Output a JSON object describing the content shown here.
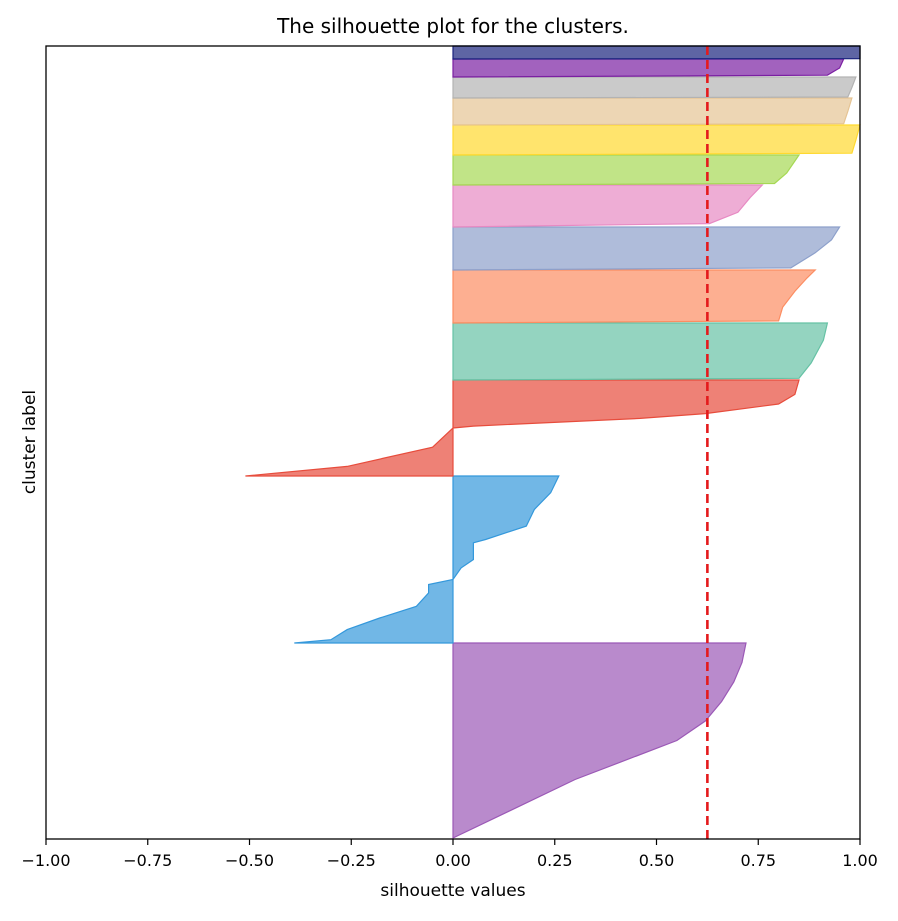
{
  "chart_data": {
    "type": "area",
    "title": "The silhouette plot for the clusters.",
    "xlabel": "silhouette values",
    "ylabel": "cluster label",
    "xlim": [
      -1.0,
      1.0
    ],
    "xticks": [
      "−1.00",
      "−0.75",
      "−0.50",
      "−0.25",
      "0.00",
      "0.25",
      "0.50",
      "0.75",
      "1.00"
    ],
    "xtick_values": [
      -1.0,
      -0.75,
      -0.5,
      -0.25,
      0.0,
      0.25,
      0.5,
      0.75,
      1.0
    ],
    "yticks_visible": false,
    "grid": false,
    "legend": "none",
    "average_silhouette": 0.625,
    "average_line_color": "#e41a1c",
    "clusters": [
      {
        "color": "#9b59b6",
        "profile": [
          [
            0.0,
            0.0
          ],
          [
            0.3,
            0.3
          ],
          [
            0.5,
            0.55
          ],
          [
            0.6,
            0.62
          ],
          [
            0.7,
            0.66
          ],
          [
            0.8,
            0.69
          ],
          [
            0.9,
            0.71
          ],
          [
            1.0,
            0.72
          ]
        ]
      },
      {
        "color": "#3498db",
        "profile": [
          [
            0.0,
            -0.39
          ],
          [
            0.02,
            -0.3
          ],
          [
            0.08,
            -0.26
          ],
          [
            0.15,
            -0.18
          ],
          [
            0.22,
            -0.09
          ],
          [
            0.3,
            -0.06
          ],
          [
            0.35,
            -0.06
          ],
          [
            0.38,
            0.0
          ],
          [
            0.45,
            0.02
          ],
          [
            0.5,
            0.05
          ],
          [
            0.6,
            0.05
          ],
          [
            0.62,
            0.08
          ],
          [
            0.7,
            0.18
          ],
          [
            0.8,
            0.2
          ],
          [
            0.9,
            0.24
          ],
          [
            1.0,
            0.26
          ]
        ]
      },
      {
        "color": "#e74c3c",
        "profile": [
          [
            0.0,
            -0.51
          ],
          [
            0.1,
            -0.26
          ],
          [
            0.3,
            -0.05
          ],
          [
            0.5,
            0.0
          ],
          [
            0.52,
            0.05
          ],
          [
            0.6,
            0.46
          ],
          [
            0.65,
            0.62
          ],
          [
            0.75,
            0.8
          ],
          [
            0.85,
            0.84
          ],
          [
            1.0,
            0.85
          ]
        ]
      },
      {
        "color": "#66c2a5",
        "profile": [
          [
            0.0,
            0.0
          ],
          [
            0.03,
            0.85
          ],
          [
            0.3,
            0.88
          ],
          [
            0.7,
            0.91
          ],
          [
            1.0,
            0.92
          ]
        ]
      },
      {
        "color": "#fc8d62",
        "profile": [
          [
            0.0,
            0.0
          ],
          [
            0.04,
            0.8
          ],
          [
            0.3,
            0.81
          ],
          [
            0.6,
            0.84
          ],
          [
            0.85,
            0.87
          ],
          [
            1.0,
            0.89
          ]
        ]
      },
      {
        "color": "#8da0cb",
        "profile": [
          [
            0.0,
            0.0
          ],
          [
            0.05,
            0.83
          ],
          [
            0.4,
            0.89
          ],
          [
            0.7,
            0.93
          ],
          [
            1.0,
            0.95
          ]
        ]
      },
      {
        "color": "#e78ac3",
        "profile": [
          [
            0.0,
            0.0
          ],
          [
            0.08,
            0.63
          ],
          [
            0.35,
            0.7
          ],
          [
            0.7,
            0.73
          ],
          [
            1.0,
            0.76
          ]
        ]
      },
      {
        "color": "#a6d854",
        "profile": [
          [
            0.0,
            0.0
          ],
          [
            0.05,
            0.79
          ],
          [
            0.4,
            0.82
          ],
          [
            0.8,
            0.84
          ],
          [
            1.0,
            0.85
          ]
        ]
      },
      {
        "color": "#ffd92f",
        "profile": [
          [
            0.0,
            0.0
          ],
          [
            0.06,
            0.98
          ],
          [
            0.5,
            0.99
          ],
          [
            1.0,
            1.0
          ]
        ]
      },
      {
        "color": "#e5c494",
        "profile": [
          [
            0.0,
            0.0
          ],
          [
            0.05,
            0.96
          ],
          [
            0.5,
            0.97
          ],
          [
            1.0,
            0.98
          ]
        ]
      },
      {
        "color": "#b3b3b3",
        "profile": [
          [
            0.0,
            0.0
          ],
          [
            0.05,
            0.97
          ],
          [
            0.5,
            0.98
          ],
          [
            1.0,
            0.99
          ]
        ]
      },
      {
        "color": "#7b1fa2",
        "profile": [
          [
            0.0,
            0.0
          ],
          [
            0.1,
            0.92
          ],
          [
            0.5,
            0.95
          ],
          [
            1.0,
            0.96
          ]
        ]
      },
      {
        "color": "#1a237e",
        "profile": [
          [
            0.0,
            0.0
          ],
          [
            0.02,
            1.0
          ],
          [
            1.0,
            1.0
          ]
        ]
      }
    ]
  }
}
